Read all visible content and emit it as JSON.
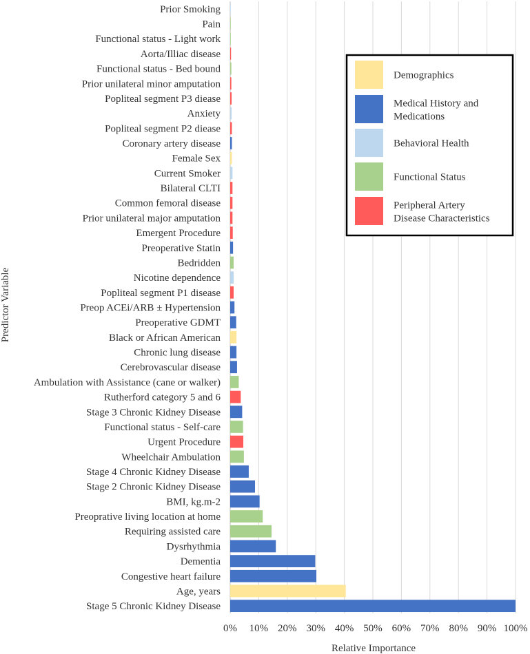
{
  "chart_data": {
    "type": "bar",
    "orientation": "horizontal",
    "title": "",
    "xlabel": "Relative Importance",
    "ylabel": "Predictor Variable",
    "xlim": [
      0,
      100
    ],
    "x_ticks": [
      "0%",
      "10%",
      "20%",
      "30%",
      "40%",
      "50%",
      "60%",
      "70%",
      "80%",
      "90%",
      "100%"
    ],
    "grid": "vertical",
    "legend_position": "top-right",
    "group_colors": {
      "Demographics": "#FFE699",
      "Medical History and Medications": "#4472C4",
      "Behavioral Health": "#BDD7EE",
      "Functional Status": "#A9D18E",
      "Peripheral Artery Disease Characteristics": "#FF5B5B"
    },
    "legend": [
      {
        "label": "Demographics",
        "group": "Demographics"
      },
      {
        "label": "Medical History and Medications",
        "group": "Medical History and Medications"
      },
      {
        "label": "Behavioral Health",
        "group": "Behavioral Health"
      },
      {
        "label": "Functional Status",
        "group": "Functional Status"
      },
      {
        "label": "Peripheral Artery Disease Characteristics",
        "group": "Peripheral Artery Disease Characteristics"
      }
    ],
    "bars": [
      {
        "label": "Prior Smoking",
        "value": 0.1,
        "group": "Behavioral Health"
      },
      {
        "label": "Pain",
        "value": 0.1,
        "group": "Functional Status"
      },
      {
        "label": "Functional status - Light work",
        "value": 0.2,
        "group": "Functional Status"
      },
      {
        "label": "Aorta/Illiac disease",
        "value": 0.3,
        "group": "Peripheral Artery Disease Characteristics"
      },
      {
        "label": "Functional status - Bed bound",
        "value": 0.4,
        "group": "Functional Status"
      },
      {
        "label": "Prior unilateral minor amputation",
        "value": 0.4,
        "group": "Peripheral Artery Disease Characteristics"
      },
      {
        "label": "Popliteal segment P3 diease",
        "value": 0.5,
        "group": "Peripheral Artery Disease Characteristics"
      },
      {
        "label": "Anxiety",
        "value": 0.5,
        "group": "Behavioral Health"
      },
      {
        "label": "Popliteal segment P2 diease",
        "value": 0.6,
        "group": "Peripheral Artery Disease Characteristics"
      },
      {
        "label": "Coronary artery disease",
        "value": 0.6,
        "group": "Medical History and Medications"
      },
      {
        "label": "Female Sex",
        "value": 0.6,
        "group": "Demographics"
      },
      {
        "label": "Current Smoker",
        "value": 0.8,
        "group": "Behavioral Health"
      },
      {
        "label": "Bilateral CLTI",
        "value": 0.8,
        "group": "Peripheral Artery Disease Characteristics"
      },
      {
        "label": "Common femoral disease",
        "value": 0.8,
        "group": "Peripheral Artery Disease Characteristics"
      },
      {
        "label": "Prior unilateral major amputation",
        "value": 0.8,
        "group": "Peripheral Artery Disease Characteristics"
      },
      {
        "label": "Emergent Procedure",
        "value": 0.9,
        "group": "Peripheral Artery Disease Characteristics"
      },
      {
        "label": "Preoperative Statin",
        "value": 1.0,
        "group": "Medical History and Medications"
      },
      {
        "label": "Bedridden",
        "value": 1.2,
        "group": "Functional Status"
      },
      {
        "label": "Nicotine dependence",
        "value": 1.2,
        "group": "Behavioral Health"
      },
      {
        "label": "Popliteal segment P1 disease",
        "value": 1.2,
        "group": "Peripheral Artery Disease Characteristics"
      },
      {
        "label": "Preop ACEi/ARB ± Hypertension",
        "value": 1.5,
        "group": "Medical History and Medications"
      },
      {
        "label": "Preoperative GDMT",
        "value": 2.1,
        "group": "Medical History and Medications"
      },
      {
        "label": "Black or African American",
        "value": 2.2,
        "group": "Demographics"
      },
      {
        "label": "Chronic lung disease",
        "value": 2.2,
        "group": "Medical History and Medications"
      },
      {
        "label": "Cerebrovascular disease",
        "value": 2.4,
        "group": "Medical History and Medications"
      },
      {
        "label": "Ambulation with Assistance (cane or walker)",
        "value": 3.0,
        "group": "Functional Status"
      },
      {
        "label": "Rutherford category 5 and 6",
        "value": 3.7,
        "group": "Peripheral Artery Disease Characteristics"
      },
      {
        "label": "Stage 3 Chronic Kidney Disease",
        "value": 4.2,
        "group": "Medical History and Medications"
      },
      {
        "label": "Functional status - Self-care",
        "value": 4.5,
        "group": "Functional Status"
      },
      {
        "label": "Urgent Procedure",
        "value": 4.6,
        "group": "Peripheral Artery Disease Characteristics"
      },
      {
        "label": "Wheelchair Ambulation",
        "value": 4.8,
        "group": "Functional Status"
      },
      {
        "label": "Stage 4 Chronic Kidney Disease",
        "value": 6.5,
        "group": "Medical History and Medications"
      },
      {
        "label": "Stage 2 Chronic Kidney Disease",
        "value": 8.7,
        "group": "Medical History and Medications"
      },
      {
        "label": "BMI, kg.m-2",
        "value": 10.3,
        "group": "Medical History and Medications"
      },
      {
        "label": "Preoprative living location at home",
        "value": 11.4,
        "group": "Functional Status"
      },
      {
        "label": "Requiring assisted care",
        "value": 14.5,
        "group": "Functional Status"
      },
      {
        "label": "Dysrhythmia",
        "value": 16.0,
        "group": "Medical History and Medications"
      },
      {
        "label": "Dementia",
        "value": 29.8,
        "group": "Medical History and Medications"
      },
      {
        "label": "Congestive heart failure",
        "value": 30.2,
        "group": "Medical History and Medications"
      },
      {
        "label": "Age, years",
        "value": 40.5,
        "group": "Demographics"
      },
      {
        "label": "Stage 5 Chronic Kidney Disease",
        "value": 100,
        "group": "Medical History and Medications"
      }
    ]
  }
}
